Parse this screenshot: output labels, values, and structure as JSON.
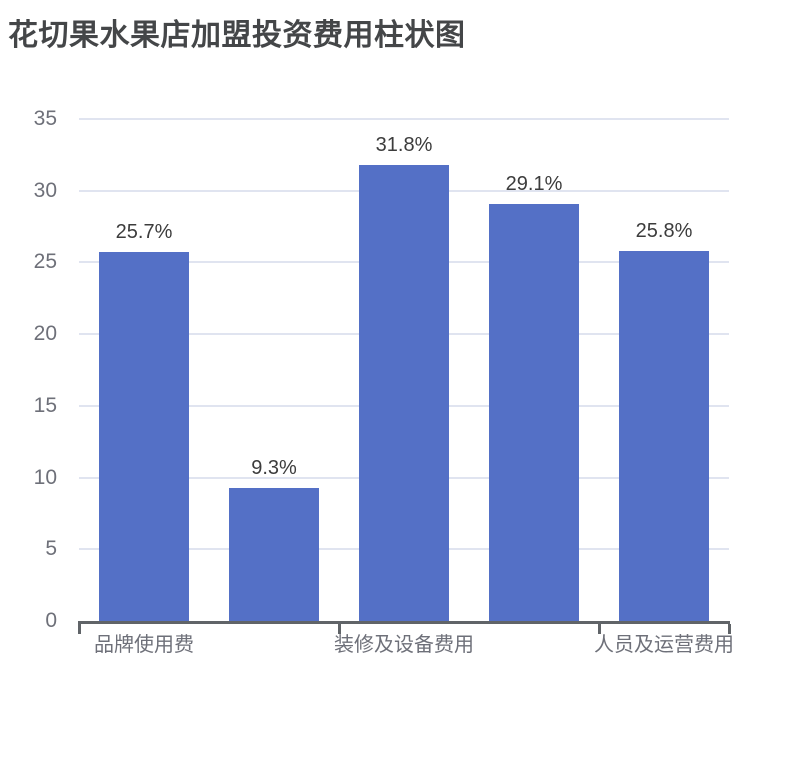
{
  "title": "花切果水果店加盟投资费用柱状图",
  "chart_data": {
    "type": "bar",
    "title": "花切果水果店加盟投资费用柱状图",
    "values": [
      25.7,
      9.3,
      31.8,
      29.1,
      25.8
    ],
    "bar_labels": [
      "25.7%",
      "9.3%",
      "31.8%",
      "29.1%",
      "25.8%"
    ],
    "x_tick_labels": [
      "品牌使用费",
      "装修及设备费用",
      "人员及运营费用"
    ],
    "x_tick_label_bar_indices": [
      0,
      2,
      4
    ],
    "x_axis_tick_boundary_indices": [
      0,
      2,
      4,
      5
    ],
    "y_ticks": [
      0,
      5,
      10,
      15,
      20,
      25,
      30,
      35
    ],
    "ylim": [
      0,
      35
    ],
    "grid": true,
    "legend_position": "none",
    "colors": {
      "bar": "#5470C6",
      "gridline": "#E0E4F0",
      "axis_line": "#606468",
      "axis_label": "#6E7079",
      "data_label": "#3C3C3C",
      "title": "#444648"
    }
  }
}
